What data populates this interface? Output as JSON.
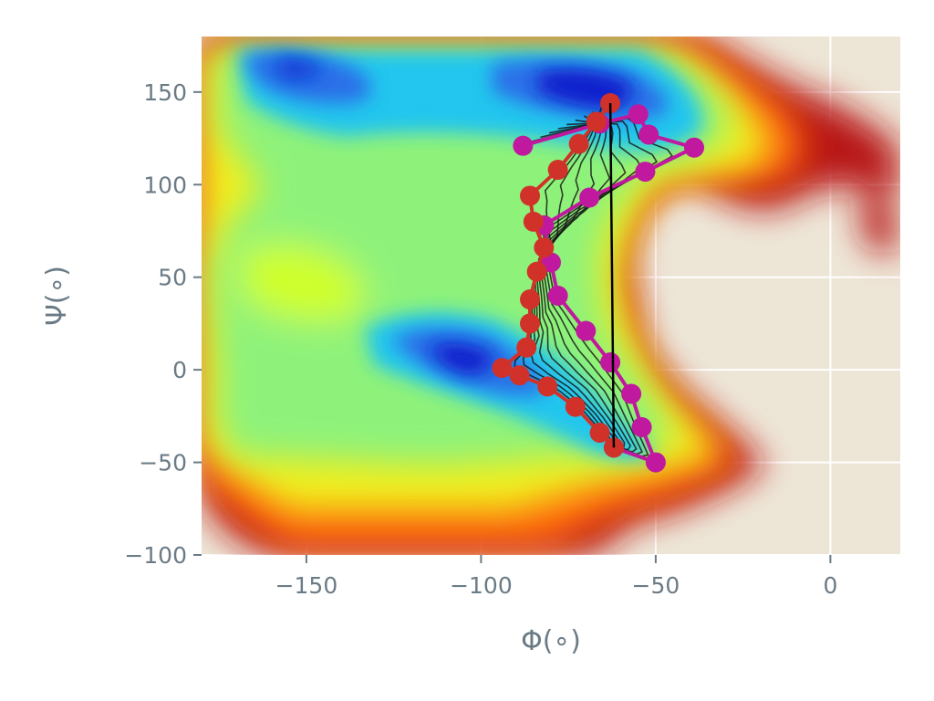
{
  "chart_data": {
    "type": "contour",
    "title": "",
    "xlabel": "Φ(∘)",
    "ylabel": "Ψ(∘)",
    "xlim": [
      -180,
      20
    ],
    "ylim": [
      -100,
      180
    ],
    "x_ticks": [
      -150,
      -100,
      -50,
      0
    ],
    "y_ticks": [
      -100,
      -50,
      0,
      50,
      100,
      150
    ],
    "x_tick_labels": [
      "−150",
      "−100",
      "−50",
      "0"
    ],
    "y_tick_labels": [
      "−100",
      "−50",
      "0",
      "50",
      "100",
      "150"
    ],
    "grid": true,
    "background_color": "#ede6d7",
    "colormap": "jet_r",
    "density_peaks": [
      {
        "phi": -62,
        "psi": 150,
        "level": "high"
      },
      {
        "phi": -98,
        "psi": 2,
        "level": "high"
      },
      {
        "phi": -158,
        "psi": 160,
        "level": "medium-high"
      }
    ],
    "series": [
      {
        "color": "#c0189e",
        "marker": "circle",
        "points": [
          [
            -62,
            -42
          ],
          [
            -50,
            -50
          ],
          [
            -54,
            -31
          ],
          [
            -57,
            -13
          ],
          [
            -63,
            4
          ],
          [
            -70,
            21
          ],
          [
            -78,
            40
          ],
          [
            -80,
            58
          ],
          [
            -82,
            78
          ],
          [
            -69,
            93
          ],
          [
            -53,
            107
          ],
          [
            -39,
            120
          ],
          [
            -52,
            127
          ],
          [
            -55,
            138
          ],
          [
            -66,
            133
          ],
          [
            -88,
            121
          ]
        ]
      },
      {
        "color": "#d0322a",
        "marker": "circle",
        "points": [
          [
            -62,
            -42
          ],
          [
            -66,
            -34
          ],
          [
            -73,
            -20
          ],
          [
            -81,
            -9
          ],
          [
            -89,
            -3
          ],
          [
            -94,
            1
          ],
          [
            -87,
            12
          ],
          [
            -86,
            25
          ],
          [
            -86,
            38
          ],
          [
            -84,
            53
          ],
          [
            -82,
            66
          ],
          [
            -85,
            80
          ],
          [
            -86,
            94
          ],
          [
            -78,
            108
          ],
          [
            -72,
            122
          ],
          [
            -67,
            134
          ],
          [
            -63,
            144
          ]
        ]
      }
    ],
    "path_bundle_color": "#111111",
    "path_bundle_count": 9
  }
}
